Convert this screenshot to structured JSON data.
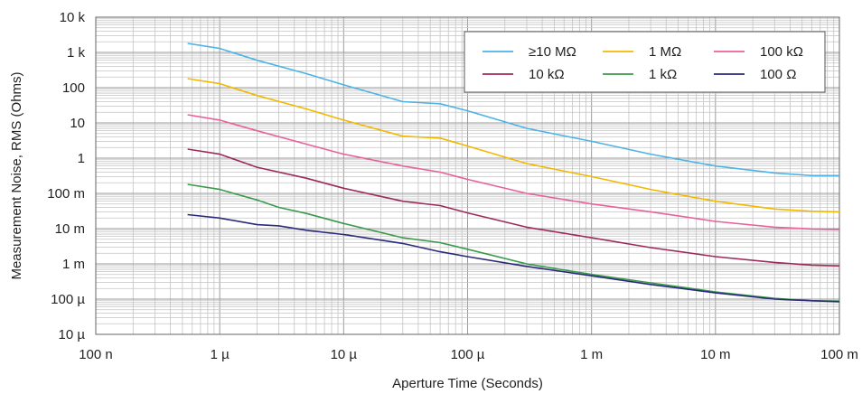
{
  "chart_data": {
    "type": "line",
    "xscale": "log",
    "yscale": "log",
    "xlabel": "Aperture Time (Seconds)",
    "ylabel": "Measurement Noise, RMS (Ohms)",
    "xlim": [
      1e-07,
      0.1
    ],
    "ylim": [
      1e-05,
      10000
    ],
    "grid": true,
    "legend_position": "top-right",
    "x_ticks": [
      {
        "value": 1e-07,
        "label": "100 n"
      },
      {
        "value": 1e-06,
        "label": "1 µ"
      },
      {
        "value": 1e-05,
        "label": "10 µ"
      },
      {
        "value": 0.0001,
        "label": "100 µ"
      },
      {
        "value": 0.001,
        "label": "1 m"
      },
      {
        "value": 0.01,
        "label": "10 m"
      },
      {
        "value": 0.1,
        "label": "100 m"
      }
    ],
    "y_ticks": [
      {
        "value": 1e-05,
        "label": "10 µ"
      },
      {
        "value": 0.0001,
        "label": "100 µ"
      },
      {
        "value": 0.001,
        "label": "1 m"
      },
      {
        "value": 0.01,
        "label": "10 m"
      },
      {
        "value": 0.1,
        "label": "100 m"
      },
      {
        "value": 1,
        "label": "1"
      },
      {
        "value": 10,
        "label": "10"
      },
      {
        "value": 100,
        "label": "100"
      },
      {
        "value": 1000,
        "label": "1 k"
      },
      {
        "value": 10000,
        "label": "10 k"
      }
    ],
    "series": [
      {
        "name": "≥10 MΩ",
        "color": "#4db3e6",
        "points": [
          [
            5.5e-07,
            1800
          ],
          [
            1e-06,
            1300
          ],
          [
            2e-06,
            600
          ],
          [
            5e-06,
            250
          ],
          [
            1e-05,
            120
          ],
          [
            3e-05,
            40
          ],
          [
            6e-05,
            35
          ],
          [
            0.0001,
            22
          ],
          [
            0.0003,
            7
          ],
          [
            0.001,
            3
          ],
          [
            0.003,
            1.3
          ],
          [
            0.01,
            0.6
          ],
          [
            0.03,
            0.38
          ],
          [
            0.06,
            0.32
          ],
          [
            0.1,
            0.32
          ]
        ]
      },
      {
        "name": "1 MΩ",
        "color": "#f2b800",
        "points": [
          [
            5.5e-07,
            180
          ],
          [
            1e-06,
            130
          ],
          [
            2e-06,
            60
          ],
          [
            5e-06,
            25
          ],
          [
            1e-05,
            12
          ],
          [
            3e-05,
            4.2
          ],
          [
            6e-05,
            3.7
          ],
          [
            0.0001,
            2.2
          ],
          [
            0.0003,
            0.7
          ],
          [
            0.001,
            0.3
          ],
          [
            0.003,
            0.13
          ],
          [
            0.01,
            0.06
          ],
          [
            0.03,
            0.036
          ],
          [
            0.06,
            0.031
          ],
          [
            0.1,
            0.03
          ]
        ]
      },
      {
        "name": "100 kΩ",
        "color": "#e8629a",
        "points": [
          [
            5.5e-07,
            17
          ],
          [
            1e-06,
            12
          ],
          [
            2e-06,
            6
          ],
          [
            5e-06,
            2.5
          ],
          [
            1e-05,
            1.3
          ],
          [
            3e-05,
            0.6
          ],
          [
            6e-05,
            0.4
          ],
          [
            0.0001,
            0.25
          ],
          [
            0.0003,
            0.1
          ],
          [
            0.001,
            0.05
          ],
          [
            0.003,
            0.03
          ],
          [
            0.01,
            0.016
          ],
          [
            0.03,
            0.011
          ],
          [
            0.06,
            0.0098
          ],
          [
            0.1,
            0.0095
          ]
        ]
      },
      {
        "name": "10 kΩ",
        "color": "#9e2a5a",
        "points": [
          [
            5.5e-07,
            1.8
          ],
          [
            1e-06,
            1.3
          ],
          [
            2e-06,
            0.55
          ],
          [
            5e-06,
            0.27
          ],
          [
            1e-05,
            0.14
          ],
          [
            3e-05,
            0.06
          ],
          [
            6e-05,
            0.045
          ],
          [
            0.0001,
            0.028
          ],
          [
            0.0003,
            0.011
          ],
          [
            0.001,
            0.0055
          ],
          [
            0.003,
            0.0029
          ],
          [
            0.01,
            0.0016
          ],
          [
            0.03,
            0.0011
          ],
          [
            0.06,
            0.00092
          ],
          [
            0.1,
            0.00088
          ]
        ]
      },
      {
        "name": "1 kΩ",
        "color": "#3a9a4a",
        "points": [
          [
            5.5e-07,
            0.18
          ],
          [
            1e-06,
            0.13
          ],
          [
            2e-06,
            0.065
          ],
          [
            3e-06,
            0.04
          ],
          [
            5e-06,
            0.027
          ],
          [
            1e-05,
            0.014
          ],
          [
            3e-05,
            0.0055
          ],
          [
            6e-05,
            0.004
          ],
          [
            0.0001,
            0.0026
          ],
          [
            0.0003,
            0.001
          ],
          [
            0.001,
            0.0005
          ],
          [
            0.003,
            0.00029
          ],
          [
            0.01,
            0.00016
          ],
          [
            0.03,
            0.000105
          ],
          [
            0.06,
            9e-05
          ],
          [
            0.1,
            8.8e-05
          ]
        ]
      },
      {
        "name": "100 Ω",
        "color": "#2a2a7a",
        "points": [
          [
            5.5e-07,
            0.025
          ],
          [
            1e-06,
            0.02
          ],
          [
            2e-06,
            0.013
          ],
          [
            3e-06,
            0.012
          ],
          [
            5e-06,
            0.009
          ],
          [
            1e-05,
            0.0068
          ],
          [
            3e-05,
            0.0038
          ],
          [
            6e-05,
            0.0022
          ],
          [
            0.0001,
            0.0016
          ],
          [
            0.0003,
            0.00085
          ],
          [
            0.001,
            0.00046
          ],
          [
            0.003,
            0.00026
          ],
          [
            0.01,
            0.00015
          ],
          [
            0.03,
            0.0001
          ],
          [
            0.06,
            9e-05
          ],
          [
            0.1,
            8.5e-05
          ]
        ]
      }
    ]
  }
}
